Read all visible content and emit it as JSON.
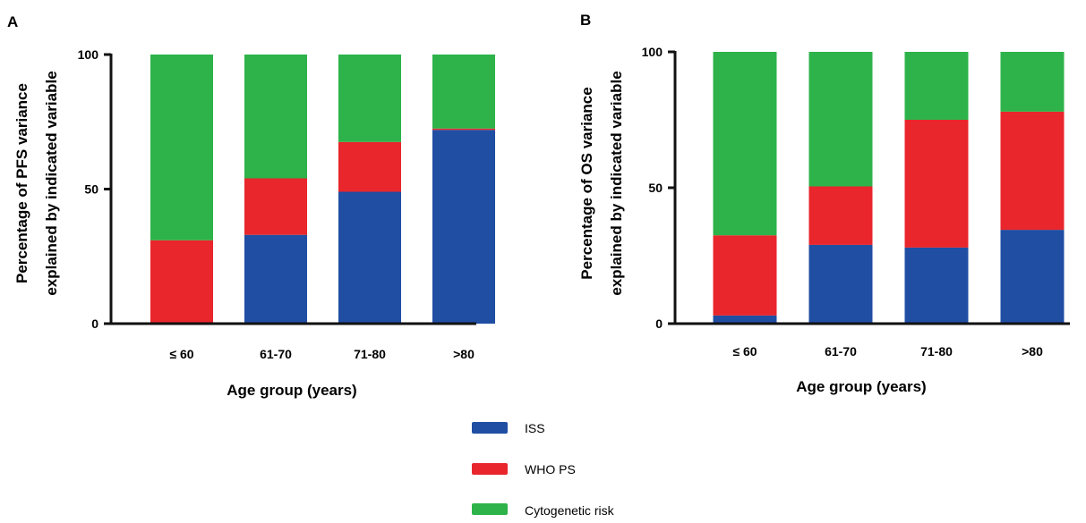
{
  "colors": {
    "ISS": "#1f4ea3",
    "WHO PS": "#e8262c",
    "Cytogenetic risk": "#2db34a",
    "axis": "#111111"
  },
  "legend": {
    "items": [
      {
        "label": "ISS",
        "color": "#1f4ea3"
      },
      {
        "label": "WHO PS",
        "color": "#e8262c"
      },
      {
        "label": "Cytogenetic risk",
        "color": "#2db34a"
      }
    ]
  },
  "chart_data": [
    {
      "type": "bar",
      "stacked": true,
      "panel": "A",
      "ylabel_line1": "Percentage of PFS variance",
      "ylabel_line2": "explained by indicated variable",
      "xlabel": "Age group (years)",
      "categories": [
        "≤ 60",
        "61-70",
        "71-80",
        ">80"
      ],
      "series": [
        {
          "name": "ISS",
          "values": [
            0,
            33,
            49,
            72
          ]
        },
        {
          "name": "WHO PS",
          "values": [
            31,
            21,
            18.5,
            0.5
          ]
        },
        {
          "name": "Cytogenetic risk",
          "values": [
            69,
            46,
            32.5,
            27.5
          ]
        }
      ],
      "ylim": [
        0,
        100
      ],
      "yticks": [
        "0",
        "50",
        "100"
      ],
      "grid": false
    },
    {
      "type": "bar",
      "stacked": true,
      "panel": "B",
      "ylabel_line1": "Percentage of OS variance",
      "ylabel_line2": "explained by indicated variable",
      "xlabel": "Age group (years)",
      "categories": [
        "≤ 60",
        "61-70",
        "71-80",
        ">80"
      ],
      "series": [
        {
          "name": "ISS",
          "values": [
            3,
            29,
            28,
            34.5
          ]
        },
        {
          "name": "WHO PS",
          "values": [
            29.5,
            21.5,
            47,
            43.5
          ]
        },
        {
          "name": "Cytogenetic risk",
          "values": [
            67.5,
            49.5,
            25,
            22
          ]
        }
      ],
      "ylim": [
        0,
        100
      ],
      "yticks": [
        "0",
        "50",
        "100"
      ],
      "grid": false
    }
  ]
}
